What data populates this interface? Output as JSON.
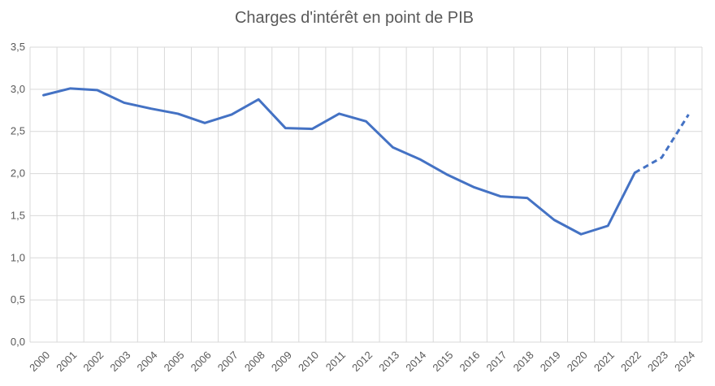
{
  "chart_data": {
    "type": "line",
    "title": "Charges d'intérêt en point de PIB",
    "xlabel": "",
    "ylabel": "",
    "categories": [
      "2000",
      "2001",
      "2002",
      "2003",
      "2004",
      "2005",
      "2006",
      "2007",
      "2008",
      "2009",
      "2010",
      "2011",
      "2012",
      "2013",
      "2014",
      "2015",
      "2016",
      "2017",
      "2018",
      "2019",
      "2020",
      "2021",
      "2022",
      "2023",
      "2024"
    ],
    "y_tick_labels": [
      "0,0",
      "0,5",
      "1,0",
      "1,5",
      "2,0",
      "2,5",
      "3,0",
      "3,5"
    ],
    "ylim": [
      0,
      3.5
    ],
    "grid": true,
    "legend": "none",
    "series": [
      {
        "values": [
          2.93,
          3.01,
          2.99,
          2.84,
          2.77,
          2.71,
          2.6,
          2.7,
          2.88,
          2.54,
          2.53,
          2.71,
          2.62,
          2.31,
          2.17,
          1.99,
          1.84,
          1.73,
          1.71,
          1.45,
          1.28,
          1.38,
          2.01,
          2.19,
          2.7
        ],
        "color": "#4472c4",
        "dashed_from_index": 22
      }
    ]
  }
}
